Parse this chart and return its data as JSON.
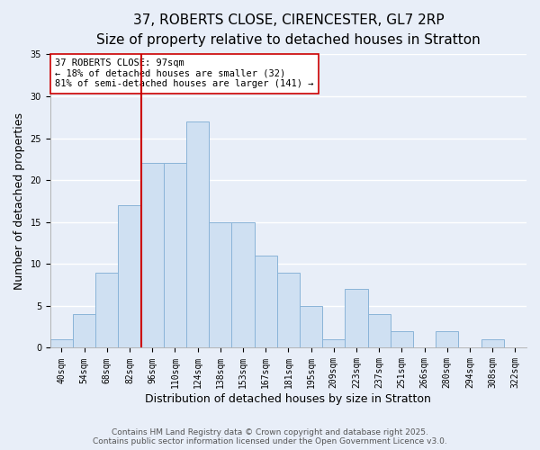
{
  "title": "37, ROBERTS CLOSE, CIRENCESTER, GL7 2RP",
  "subtitle": "Size of property relative to detached houses in Stratton",
  "xlabel": "Distribution of detached houses by size in Stratton",
  "ylabel": "Number of detached properties",
  "bin_labels": [
    "40sqm",
    "54sqm",
    "68sqm",
    "82sqm",
    "96sqm",
    "110sqm",
    "124sqm",
    "138sqm",
    "153sqm",
    "167sqm",
    "181sqm",
    "195sqm",
    "209sqm",
    "223sqm",
    "237sqm",
    "251sqm",
    "266sqm",
    "280sqm",
    "294sqm",
    "308sqm",
    "322sqm"
  ],
  "bar_values": [
    1,
    4,
    9,
    17,
    22,
    22,
    27,
    15,
    15,
    11,
    9,
    5,
    1,
    7,
    4,
    2,
    0,
    2,
    0,
    1,
    0
  ],
  "bar_color": "#cfe0f2",
  "bar_edge_color": "#8ab4d8",
  "vline_x_index": 4,
  "vline_color": "#cc0000",
  "ylim": [
    0,
    35
  ],
  "yticks": [
    0,
    5,
    10,
    15,
    20,
    25,
    30,
    35
  ],
  "annotation_title": "37 ROBERTS CLOSE: 97sqm",
  "annotation_line1": "← 18% of detached houses are smaller (32)",
  "annotation_line2": "81% of semi-detached houses are larger (141) →",
  "annotation_box_facecolor": "#ffffff",
  "annotation_box_edgecolor": "#cc0000",
  "footer_line1": "Contains HM Land Registry data © Crown copyright and database right 2025.",
  "footer_line2": "Contains public sector information licensed under the Open Government Licence v3.0.",
  "background_color": "#e8eef8",
  "grid_color": "#ffffff",
  "title_fontsize": 11,
  "subtitle_fontsize": 9.5,
  "axis_label_fontsize": 9,
  "tick_fontsize": 7,
  "annotation_fontsize": 7.5,
  "footer_fontsize": 6.5
}
